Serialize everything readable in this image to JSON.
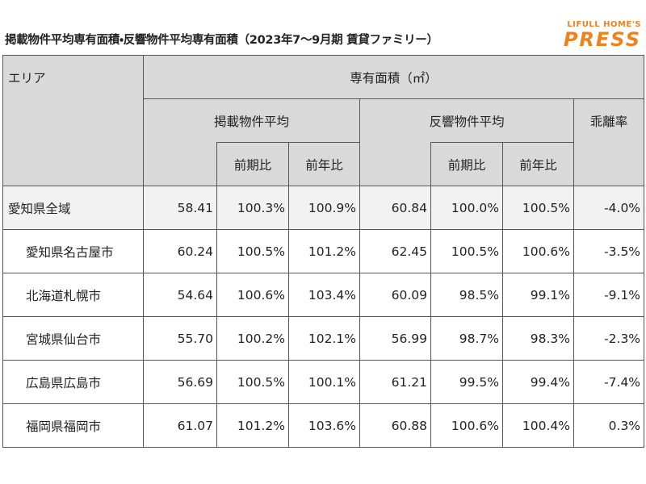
{
  "header": {
    "title": "掲載物件平均専有面積・反響物件平均専有面積（2023年7～9月期 賃貸ファミリー）",
    "logo": {
      "brand": "LIFULL HOME'S",
      "name": "PRESS"
    }
  },
  "table": {
    "area_label": "エリア",
    "group_label": "専有面積（㎡）",
    "listed_label": "掲載物件平均",
    "response_label": "反響物件平均",
    "gap_label": "乖離率",
    "sub_labels": [
      "前期比",
      "前年比"
    ],
    "rows": [
      [
        "愛知県全域",
        "58.41",
        "100.3%",
        "100.9%",
        "60.84",
        "100.0%",
        "100.5%",
        "-4.0%"
      ],
      [
        "愛知県名古屋市",
        "60.24",
        "100.5%",
        "101.2%",
        "62.45",
        "100.5%",
        "100.6%",
        "-3.5%"
      ],
      [
        "北海道札幌市",
        "54.64",
        "100.6%",
        "103.4%",
        "60.09",
        "98.5%",
        "99.1%",
        "-9.1%"
      ],
      [
        "宮城県仙台市",
        "55.70",
        "100.2%",
        "102.1%",
        "56.99",
        "98.7%",
        "98.3%",
        "-2.3%"
      ],
      [
        "広島県広島市",
        "56.69",
        "100.5%",
        "100.1%",
        "61.21",
        "99.5%",
        "99.4%",
        "-7.4%"
      ],
      [
        "福岡県福岡市",
        "61.07",
        "101.2%",
        "103.6%",
        "60.88",
        "100.6%",
        "100.4%",
        "0.3%"
      ]
    ]
  }
}
